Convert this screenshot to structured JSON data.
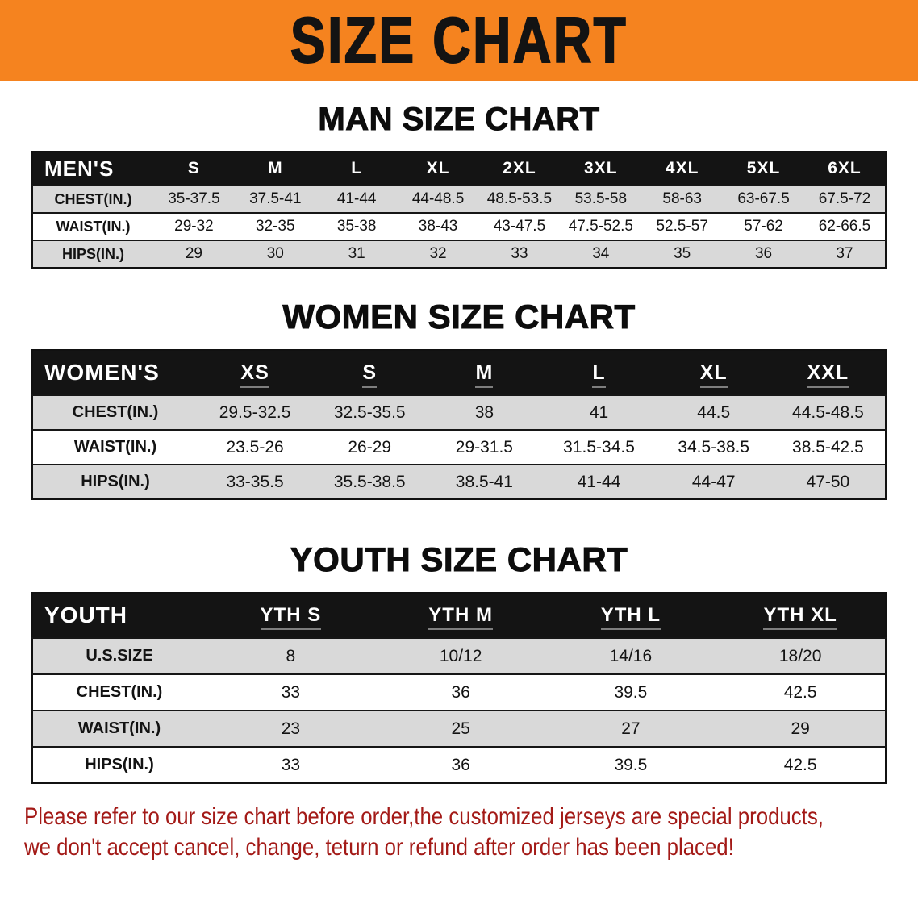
{
  "banner": {
    "title": "SIZE CHART"
  },
  "colors": {
    "banner_bg": "#f5831f",
    "table_header_bg": "#141414",
    "row_alt_bg": "#d9d9d9",
    "disclaimer_text": "#a31a17"
  },
  "sections": [
    {
      "id": "men",
      "heading": "MAN SIZE CHART",
      "table": {
        "header": [
          "MEN'S",
          "S",
          "M",
          "L",
          "XL",
          "2XL",
          "3XL",
          "4XL",
          "5XL",
          "6XL"
        ],
        "rows": [
          [
            "CHEST(IN.)",
            "35-37.5",
            "37.5-41",
            "41-44",
            "44-48.5",
            "48.5-53.5",
            "53.5-58",
            "58-63",
            "63-67.5",
            "67.5-72"
          ],
          [
            "WAIST(IN.)",
            "29-32",
            "32-35",
            "35-38",
            "38-43",
            "43-47.5",
            "47.5-52.5",
            "52.5-57",
            "57-62",
            "62-66.5"
          ],
          [
            "HIPS(IN.)",
            "29",
            "30",
            "31",
            "32",
            "33",
            "34",
            "35",
            "36",
            "37"
          ]
        ]
      }
    },
    {
      "id": "women",
      "heading": "WOMEN SIZE CHART",
      "table": {
        "header": [
          "WOMEN'S",
          "XS",
          "S",
          "M",
          "L",
          "XL",
          "XXL"
        ],
        "rows": [
          [
            "CHEST(IN.)",
            "29.5-32.5",
            "32.5-35.5",
            "38",
            "41",
            "44.5",
            "44.5-48.5"
          ],
          [
            "WAIST(IN.)",
            "23.5-26",
            "26-29",
            "29-31.5",
            "31.5-34.5",
            "34.5-38.5",
            "38.5-42.5"
          ],
          [
            "HIPS(IN.)",
            "33-35.5",
            "35.5-38.5",
            "38.5-41",
            "41-44",
            "44-47",
            "47-50"
          ]
        ]
      }
    },
    {
      "id": "youth",
      "heading": "YOUTH SIZE CHART",
      "table": {
        "header": [
          "YOUTH",
          "YTH S",
          "YTH M",
          "YTH L",
          "YTH XL"
        ],
        "rows": [
          [
            "U.S.SIZE",
            "8",
            "10/12",
            "14/16",
            "18/20"
          ],
          [
            "CHEST(IN.)",
            "33",
            "36",
            "39.5",
            "42.5"
          ],
          [
            "WAIST(IN.)",
            "23",
            "25",
            "27",
            "29"
          ],
          [
            "HIPS(IN.)",
            "33",
            "36",
            "39.5",
            "42.5"
          ]
        ]
      }
    }
  ],
  "disclaimer": {
    "line1": "Please refer to our size chart before order,the customized jerseys are special products,",
    "line2": "we don't accept cancel, change, teturn or refund after order has been placed!"
  }
}
